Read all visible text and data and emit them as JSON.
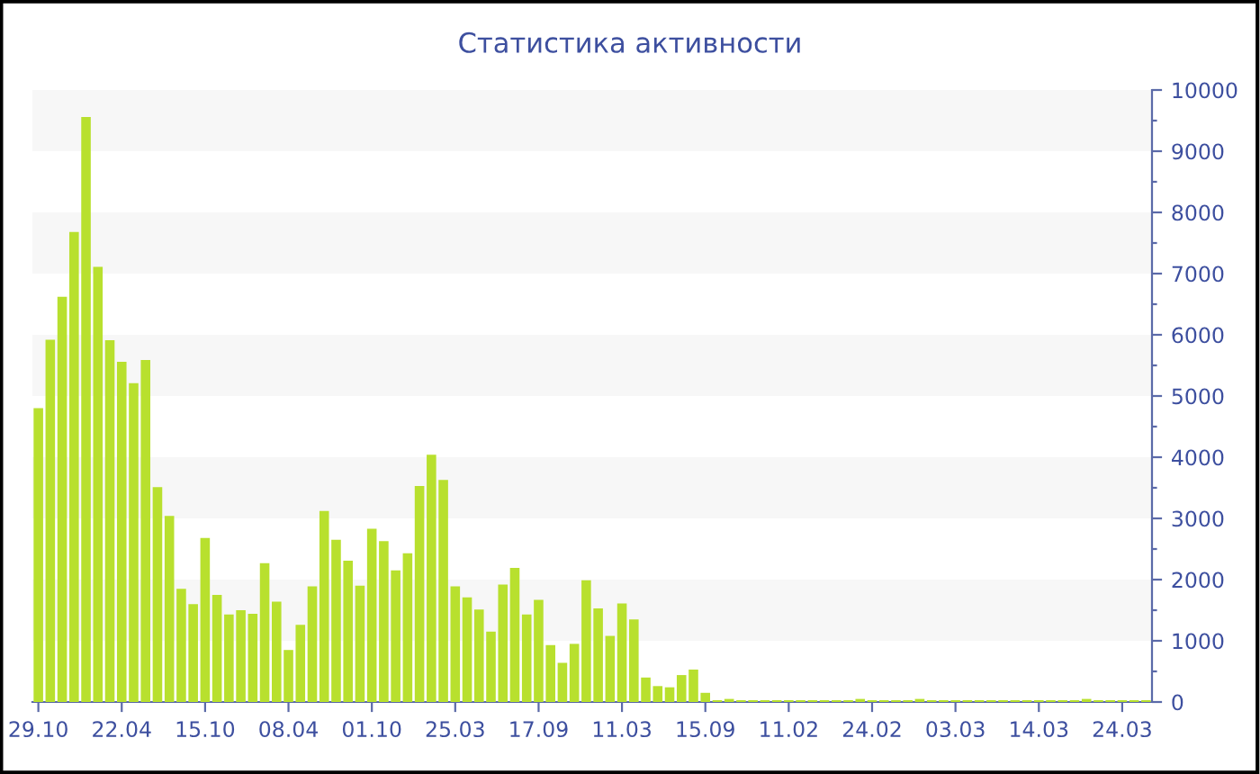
{
  "chart_data": {
    "type": "bar",
    "title": "Статистика активности",
    "categories": [
      "29.10",
      null,
      null,
      null,
      null,
      null,
      null,
      "22.04",
      null,
      null,
      null,
      null,
      null,
      null,
      "15.10",
      null,
      null,
      null,
      null,
      null,
      null,
      "08.04",
      null,
      null,
      null,
      null,
      null,
      null,
      "01.10",
      null,
      null,
      null,
      null,
      null,
      null,
      "25.03",
      null,
      null,
      null,
      null,
      null,
      null,
      "17.09",
      null,
      null,
      null,
      null,
      null,
      null,
      "11.03",
      null,
      null,
      null,
      null,
      null,
      null,
      "15.09",
      null,
      null,
      null,
      null,
      null,
      null,
      "11.02",
      null,
      null,
      null,
      null,
      null,
      null,
      "24.02",
      null,
      null,
      null,
      null,
      null,
      null,
      "03.03",
      null,
      null,
      null,
      null,
      null,
      null,
      "14.03",
      null,
      null,
      null,
      null,
      null,
      null,
      "24.03",
      null,
      null
    ],
    "series": [
      {
        "color": "#b8e02e",
        "values": [
          4800,
          5920,
          6620,
          7680,
          9560,
          7110,
          5910,
          5560,
          5210,
          5590,
          3510,
          3040,
          1850,
          1600,
          2680,
          1750,
          1430,
          1500,
          1440,
          2270,
          1640,
          850,
          1260,
          1890,
          3120,
          2650,
          2310,
          1900,
          2830,
          2630,
          2150,
          2430,
          3530,
          4040,
          3630,
          1890,
          1710,
          1510,
          1150,
          1920,
          2190,
          1430,
          1670,
          930,
          640,
          950,
          1990,
          1530,
          1080,
          1610,
          1350,
          400,
          260,
          240,
          440,
          530,
          150,
          30,
          50,
          30,
          30,
          30,
          30,
          30,
          30,
          30,
          30,
          30,
          30,
          50,
          30,
          30,
          30,
          30,
          50,
          30,
          30,
          30,
          30,
          30,
          30,
          30,
          30,
          30,
          30,
          30,
          30,
          30,
          50,
          30,
          30,
          30,
          30,
          30
        ]
      }
    ],
    "ylim": [
      0,
      10000
    ],
    "yticks": [
      0,
      {
        "value": 500,
        "label": null
      },
      1000,
      {
        "value": 1500,
        "label": null
      },
      2000,
      {
        "value": 2500,
        "label": null
      },
      3000,
      {
        "value": 3500,
        "label": null
      },
      4000,
      {
        "value": 4500,
        "label": null
      },
      5000,
      {
        "value": 5500,
        "label": null
      },
      6000,
      {
        "value": 6500,
        "label": null
      },
      7000,
      {
        "value": 7500,
        "label": null
      },
      8000,
      {
        "value": 8500,
        "label": null
      },
      9000,
      {
        "value": 9500,
        "label": null
      },
      10000
    ],
    "bands": [
      {
        "axis": "y",
        "from": 1000,
        "to": 2000,
        "color": "#f7f7f7"
      },
      {
        "axis": "y",
        "from": 3000,
        "to": 4000,
        "color": "#f7f7f7"
      },
      {
        "axis": "y",
        "from": 5000,
        "to": 6000,
        "color": "#f7f7f7"
      },
      {
        "axis": "y",
        "from": 7000,
        "to": 8000,
        "color": "#f7f7f7"
      },
      {
        "axis": "y",
        "from": 9000,
        "to": 10000,
        "color": "#f7f7f7"
      }
    ],
    "grid": false,
    "legend": false
  }
}
